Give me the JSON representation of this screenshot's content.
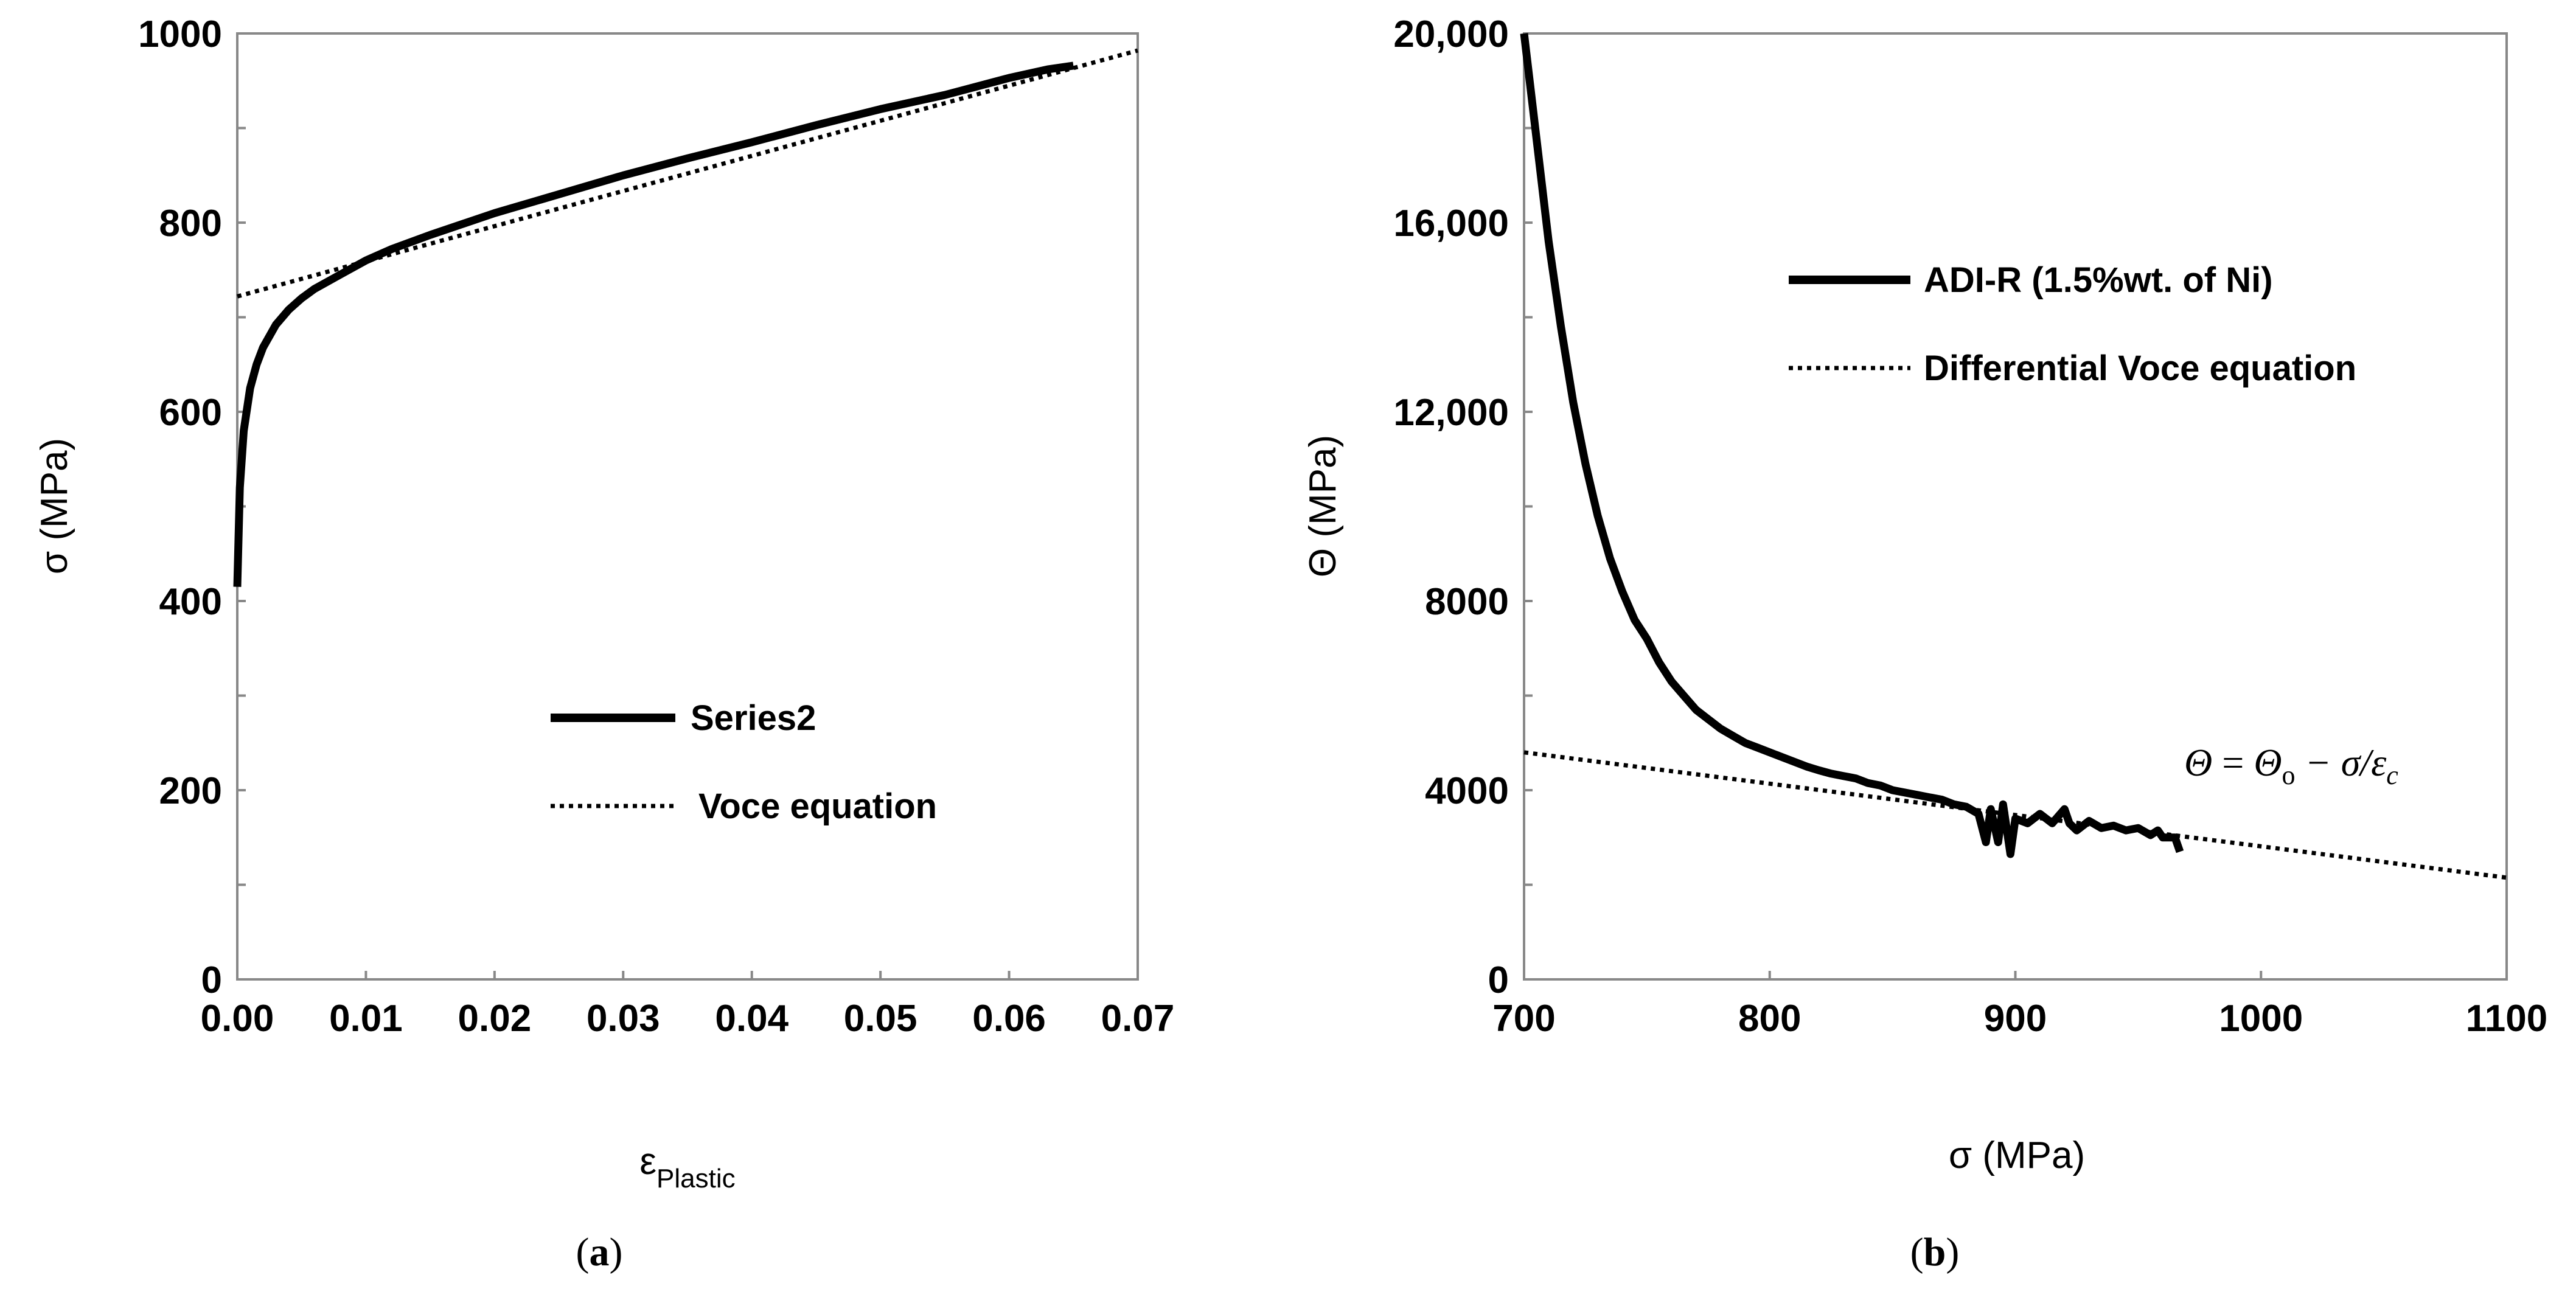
{
  "panels": [
    {
      "id": "a",
      "label_open": "(",
      "label_letter": "a",
      "label_close": ")"
    },
    {
      "id": "b",
      "label_open": "(",
      "label_letter": "b",
      "label_close": ")"
    }
  ],
  "chart_data": [
    {
      "type": "line",
      "panel": "a",
      "title": "",
      "xlabel": "ε",
      "xlabel_subscript": "Plastic",
      "ylabel": "σ  (MPa)",
      "xlim": [
        0,
        0.07
      ],
      "ylim": [
        0,
        1000
      ],
      "xticks": [
        "0.00",
        "0.01",
        "0.02",
        "0.03",
        "0.04",
        "0.05",
        "0.06",
        "0.07"
      ],
      "yticks": [
        "0",
        "200",
        "400",
        "600",
        "800",
        "1000"
      ],
      "grid": false,
      "legend_position": "center-right",
      "series": [
        {
          "name": "Series2",
          "style": "solid-thick",
          "x": [
            0.0,
            0.0002,
            0.0005,
            0.001,
            0.0015,
            0.002,
            0.003,
            0.004,
            0.005,
            0.006,
            0.008,
            0.01,
            0.012,
            0.015,
            0.02,
            0.025,
            0.03,
            0.035,
            0.04,
            0.045,
            0.05,
            0.055,
            0.06,
            0.063,
            0.065
          ],
          "y": [
            415,
            520,
            580,
            625,
            650,
            668,
            692,
            708,
            720,
            730,
            745,
            760,
            772,
            787,
            810,
            830,
            850,
            868,
            885,
            903,
            920,
            935,
            953,
            962,
            966
          ]
        },
        {
          "name": "Voce equation",
          "style": "dotted",
          "x": [
            0.0,
            0.07
          ],
          "y": [
            722,
            982
          ]
        }
      ]
    },
    {
      "type": "line",
      "panel": "b",
      "title": "",
      "xlabel": "σ  (MPa)",
      "ylabel": "Θ  (MPa)",
      "xlim": [
        700,
        1100
      ],
      "ylim": [
        0,
        20000
      ],
      "xticks": [
        "700",
        "800",
        "900",
        "1000",
        "1100"
      ],
      "yticks": [
        "0",
        "4000",
        "8000",
        "12,000",
        "16,000",
        "20,000"
      ],
      "grid": false,
      "legend_position": "top-right",
      "annotation": {
        "theta": "Θ",
        "equals": " = ",
        "theta0": "Θ",
        "zero": "o",
        "minus": " − σ/ε",
        "sub_c": "c"
      },
      "series": [
        {
          "name": "ADI-R (1.5%wt. of Ni)",
          "style": "solid-thick",
          "x": [
            700,
            705,
            710,
            715,
            720,
            725,
            730,
            735,
            740,
            745,
            750,
            755,
            760,
            765,
            770,
            775,
            780,
            785,
            790,
            795,
            800,
            805,
            810,
            815,
            820,
            825,
            830,
            835,
            840,
            845,
            850,
            855,
            860,
            865,
            870,
            875,
            880,
            885,
            888,
            890,
            893,
            895,
            898,
            900,
            905,
            910,
            915,
            920,
            922,
            925,
            930,
            935,
            940,
            945,
            950,
            955,
            958,
            960,
            965,
            967
          ],
          "y": [
            20000,
            17800,
            15600,
            13800,
            12200,
            10900,
            9800,
            8900,
            8200,
            7600,
            7200,
            6700,
            6300,
            6000,
            5700,
            5500,
            5300,
            5150,
            5000,
            4900,
            4800,
            4700,
            4600,
            4500,
            4420,
            4350,
            4300,
            4250,
            4150,
            4100,
            4000,
            3950,
            3900,
            3850,
            3800,
            3700,
            3650,
            3500,
            2900,
            3600,
            2900,
            3700,
            2650,
            3400,
            3300,
            3500,
            3300,
            3600,
            3300,
            3150,
            3350,
            3200,
            3250,
            3150,
            3200,
            3050,
            3150,
            3000,
            3000,
            2700
          ]
        },
        {
          "name": "Differential Voce equation",
          "style": "dotted",
          "x": [
            700,
            1100
          ],
          "y": [
            4800,
            2150
          ]
        }
      ]
    }
  ]
}
